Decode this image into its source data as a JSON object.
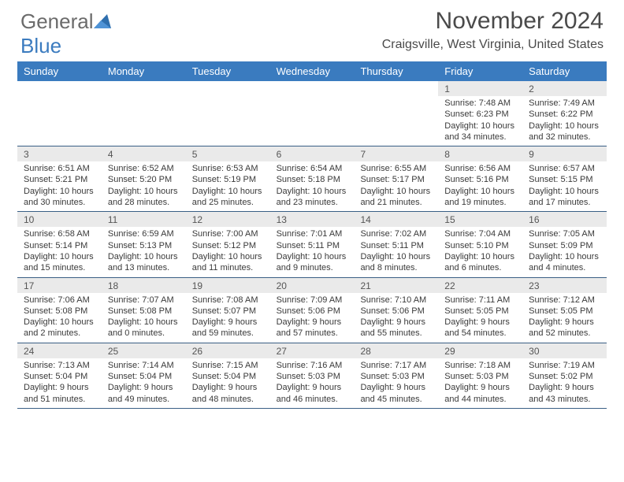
{
  "logo": {
    "text1": "General",
    "text2": "Blue"
  },
  "title": "November 2024",
  "location": "Craigsville, West Virginia, United States",
  "colors": {
    "header_bg": "#3a7bbf",
    "header_fg": "#ffffff",
    "daynum_bg": "#eaeaea",
    "rule": "#3a5f85",
    "text": "#3a3a3a"
  },
  "day_names": [
    "Sunday",
    "Monday",
    "Tuesday",
    "Wednesday",
    "Thursday",
    "Friday",
    "Saturday"
  ],
  "weeks": [
    [
      null,
      null,
      null,
      null,
      null,
      {
        "n": "1",
        "sr": "Sunrise: 7:48 AM",
        "ss": "Sunset: 6:23 PM",
        "dl": "Daylight: 10 hours and 34 minutes."
      },
      {
        "n": "2",
        "sr": "Sunrise: 7:49 AM",
        "ss": "Sunset: 6:22 PM",
        "dl": "Daylight: 10 hours and 32 minutes."
      }
    ],
    [
      {
        "n": "3",
        "sr": "Sunrise: 6:51 AM",
        "ss": "Sunset: 5:21 PM",
        "dl": "Daylight: 10 hours and 30 minutes."
      },
      {
        "n": "4",
        "sr": "Sunrise: 6:52 AM",
        "ss": "Sunset: 5:20 PM",
        "dl": "Daylight: 10 hours and 28 minutes."
      },
      {
        "n": "5",
        "sr": "Sunrise: 6:53 AM",
        "ss": "Sunset: 5:19 PM",
        "dl": "Daylight: 10 hours and 25 minutes."
      },
      {
        "n": "6",
        "sr": "Sunrise: 6:54 AM",
        "ss": "Sunset: 5:18 PM",
        "dl": "Daylight: 10 hours and 23 minutes."
      },
      {
        "n": "7",
        "sr": "Sunrise: 6:55 AM",
        "ss": "Sunset: 5:17 PM",
        "dl": "Daylight: 10 hours and 21 minutes."
      },
      {
        "n": "8",
        "sr": "Sunrise: 6:56 AM",
        "ss": "Sunset: 5:16 PM",
        "dl": "Daylight: 10 hours and 19 minutes."
      },
      {
        "n": "9",
        "sr": "Sunrise: 6:57 AM",
        "ss": "Sunset: 5:15 PM",
        "dl": "Daylight: 10 hours and 17 minutes."
      }
    ],
    [
      {
        "n": "10",
        "sr": "Sunrise: 6:58 AM",
        "ss": "Sunset: 5:14 PM",
        "dl": "Daylight: 10 hours and 15 minutes."
      },
      {
        "n": "11",
        "sr": "Sunrise: 6:59 AM",
        "ss": "Sunset: 5:13 PM",
        "dl": "Daylight: 10 hours and 13 minutes."
      },
      {
        "n": "12",
        "sr": "Sunrise: 7:00 AM",
        "ss": "Sunset: 5:12 PM",
        "dl": "Daylight: 10 hours and 11 minutes."
      },
      {
        "n": "13",
        "sr": "Sunrise: 7:01 AM",
        "ss": "Sunset: 5:11 PM",
        "dl": "Daylight: 10 hours and 9 minutes."
      },
      {
        "n": "14",
        "sr": "Sunrise: 7:02 AM",
        "ss": "Sunset: 5:11 PM",
        "dl": "Daylight: 10 hours and 8 minutes."
      },
      {
        "n": "15",
        "sr": "Sunrise: 7:04 AM",
        "ss": "Sunset: 5:10 PM",
        "dl": "Daylight: 10 hours and 6 minutes."
      },
      {
        "n": "16",
        "sr": "Sunrise: 7:05 AM",
        "ss": "Sunset: 5:09 PM",
        "dl": "Daylight: 10 hours and 4 minutes."
      }
    ],
    [
      {
        "n": "17",
        "sr": "Sunrise: 7:06 AM",
        "ss": "Sunset: 5:08 PM",
        "dl": "Daylight: 10 hours and 2 minutes."
      },
      {
        "n": "18",
        "sr": "Sunrise: 7:07 AM",
        "ss": "Sunset: 5:08 PM",
        "dl": "Daylight: 10 hours and 0 minutes."
      },
      {
        "n": "19",
        "sr": "Sunrise: 7:08 AM",
        "ss": "Sunset: 5:07 PM",
        "dl": "Daylight: 9 hours and 59 minutes."
      },
      {
        "n": "20",
        "sr": "Sunrise: 7:09 AM",
        "ss": "Sunset: 5:06 PM",
        "dl": "Daylight: 9 hours and 57 minutes."
      },
      {
        "n": "21",
        "sr": "Sunrise: 7:10 AM",
        "ss": "Sunset: 5:06 PM",
        "dl": "Daylight: 9 hours and 55 minutes."
      },
      {
        "n": "22",
        "sr": "Sunrise: 7:11 AM",
        "ss": "Sunset: 5:05 PM",
        "dl": "Daylight: 9 hours and 54 minutes."
      },
      {
        "n": "23",
        "sr": "Sunrise: 7:12 AM",
        "ss": "Sunset: 5:05 PM",
        "dl": "Daylight: 9 hours and 52 minutes."
      }
    ],
    [
      {
        "n": "24",
        "sr": "Sunrise: 7:13 AM",
        "ss": "Sunset: 5:04 PM",
        "dl": "Daylight: 9 hours and 51 minutes."
      },
      {
        "n": "25",
        "sr": "Sunrise: 7:14 AM",
        "ss": "Sunset: 5:04 PM",
        "dl": "Daylight: 9 hours and 49 minutes."
      },
      {
        "n": "26",
        "sr": "Sunrise: 7:15 AM",
        "ss": "Sunset: 5:04 PM",
        "dl": "Daylight: 9 hours and 48 minutes."
      },
      {
        "n": "27",
        "sr": "Sunrise: 7:16 AM",
        "ss": "Sunset: 5:03 PM",
        "dl": "Daylight: 9 hours and 46 minutes."
      },
      {
        "n": "28",
        "sr": "Sunrise: 7:17 AM",
        "ss": "Sunset: 5:03 PM",
        "dl": "Daylight: 9 hours and 45 minutes."
      },
      {
        "n": "29",
        "sr": "Sunrise: 7:18 AM",
        "ss": "Sunset: 5:03 PM",
        "dl": "Daylight: 9 hours and 44 minutes."
      },
      {
        "n": "30",
        "sr": "Sunrise: 7:19 AM",
        "ss": "Sunset: 5:02 PM",
        "dl": "Daylight: 9 hours and 43 minutes."
      }
    ]
  ]
}
